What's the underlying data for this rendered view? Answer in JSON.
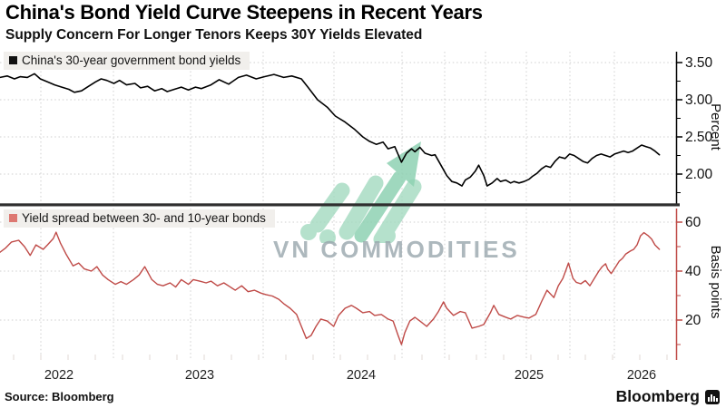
{
  "header": {
    "title": "China's Bond Yield Curve Steepens in Recent Years",
    "subtitle": "Supply Concern For Longer Tenors Keeps 30Y Yields Elevated"
  },
  "watermark": {
    "text": "VN COMMODITIES"
  },
  "footer": {
    "source": "Source: Bloomberg",
    "brand": "Bloomberg"
  },
  "colors": {
    "yield_line": "#000000",
    "spread_line": "#bf4a47",
    "yield_swatch": "#111111",
    "spread_swatch": "#dd7872",
    "grid": "#cfcfcf",
    "separator": "#2f2f2f",
    "axis_top": "#000000",
    "axis_bottom": "#bf4a47",
    "tick_label": "#111111",
    "year_label": "#222222",
    "legend_bg": "#f1efec",
    "watermark_green": "#a3dac0",
    "watermark_arrow": "#8fd2b3"
  },
  "chart_data": {
    "type": "line",
    "title": "China's Bond Yield Curve Steepens in Recent Years",
    "subtitle": "Supply Concern For Longer Tenors Keeps 30Y Yields Elevated",
    "x_axis": {
      "tick_labels": [
        "2022",
        "2023",
        "2024",
        "2025",
        "2026"
      ],
      "range_years": [
        2021.59,
        2026.31
      ],
      "grid": true
    },
    "panels": [
      {
        "legend": "China's 30-year government bond yields",
        "axis_title": "Percent",
        "y_tick_labels": [
          "3.50",
          "3.00",
          "2.50",
          "2.00"
        ],
        "y_tick_values": [
          3.5,
          3.0,
          2.5,
          2.0
        ],
        "y_minor_ticks": [
          3.25,
          2.75,
          2.25,
          1.75
        ],
        "ylim": [
          1.59,
          3.65
        ],
        "series_name": "China 30Y yield (%)",
        "series": [
          [
            2021.59,
            3.3
          ],
          [
            2021.64,
            3.32
          ],
          [
            2021.69,
            3.28
          ],
          [
            2021.73,
            3.31
          ],
          [
            2021.78,
            3.3
          ],
          [
            2021.83,
            3.35
          ],
          [
            2021.87,
            3.28
          ],
          [
            2021.92,
            3.24
          ],
          [
            2021.97,
            3.2
          ],
          [
            2022.02,
            3.17
          ],
          [
            2022.07,
            3.14
          ],
          [
            2022.11,
            3.1
          ],
          [
            2022.16,
            3.12
          ],
          [
            2022.21,
            3.18
          ],
          [
            2022.26,
            3.24
          ],
          [
            2022.3,
            3.28
          ],
          [
            2022.34,
            3.26
          ],
          [
            2022.39,
            3.22
          ],
          [
            2022.43,
            3.26
          ],
          [
            2022.48,
            3.2
          ],
          [
            2022.54,
            3.22
          ],
          [
            2022.58,
            3.16
          ],
          [
            2022.63,
            3.18
          ],
          [
            2022.68,
            3.12
          ],
          [
            2022.73,
            3.15
          ],
          [
            2022.77,
            3.11
          ],
          [
            2022.82,
            3.14
          ],
          [
            2022.87,
            3.17
          ],
          [
            2022.92,
            3.13
          ],
          [
            2022.97,
            3.17
          ],
          [
            2023.01,
            3.15
          ],
          [
            2023.07,
            3.2
          ],
          [
            2023.12,
            3.27
          ],
          [
            2023.18,
            3.21
          ],
          [
            2023.24,
            3.3
          ],
          [
            2023.29,
            3.33
          ],
          [
            2023.35,
            3.28
          ],
          [
            2023.4,
            3.31
          ],
          [
            2023.46,
            3.34
          ],
          [
            2023.52,
            3.3
          ],
          [
            2023.57,
            3.32
          ],
          [
            2023.63,
            3.28
          ],
          [
            2023.67,
            3.17
          ],
          [
            2023.73,
            3.0
          ],
          [
            2023.79,
            2.9
          ],
          [
            2023.84,
            2.78
          ],
          [
            2023.9,
            2.7
          ],
          [
            2023.96,
            2.6
          ],
          [
            2024.01,
            2.5
          ],
          [
            2024.05,
            2.44
          ],
          [
            2024.09,
            2.4
          ],
          [
            2024.13,
            2.43
          ],
          [
            2024.16,
            2.34
          ],
          [
            2024.2,
            2.37
          ],
          [
            2024.24,
            2.16
          ],
          [
            2024.27,
            2.28
          ],
          [
            2024.3,
            2.34
          ],
          [
            2024.32,
            2.3
          ],
          [
            2024.35,
            2.36
          ],
          [
            2024.38,
            2.28
          ],
          [
            2024.42,
            2.25
          ],
          [
            2024.44,
            2.26
          ],
          [
            2024.48,
            2.1
          ],
          [
            2024.51,
            1.98
          ],
          [
            2024.54,
            1.9
          ],
          [
            2024.57,
            1.88
          ],
          [
            2024.6,
            1.84
          ],
          [
            2024.62,
            1.92
          ],
          [
            2024.65,
            1.96
          ],
          [
            2024.68,
            2.04
          ],
          [
            2024.7,
            2.12
          ],
          [
            2024.73,
            1.98
          ],
          [
            2024.75,
            1.84
          ],
          [
            2024.78,
            1.88
          ],
          [
            2024.81,
            1.94
          ],
          [
            2024.83,
            1.9
          ],
          [
            2024.86,
            1.92
          ],
          [
            2024.89,
            1.88
          ],
          [
            2024.91,
            1.9
          ],
          [
            2024.94,
            1.88
          ],
          [
            2024.97,
            1.9
          ],
          [
            2025.0,
            1.93
          ],
          [
            2025.03,
            1.97
          ],
          [
            2025.07,
            2.01
          ],
          [
            2025.11,
            2.07
          ],
          [
            2025.15,
            2.11
          ],
          [
            2025.19,
            2.09
          ],
          [
            2025.23,
            2.17
          ],
          [
            2025.27,
            2.23
          ],
          [
            2025.32,
            2.21
          ],
          [
            2025.36,
            2.27
          ],
          [
            2025.4,
            2.25
          ],
          [
            2025.44,
            2.21
          ],
          [
            2025.48,
            2.17
          ],
          [
            2025.52,
            2.15
          ],
          [
            2025.56,
            2.21
          ],
          [
            2025.6,
            2.25
          ],
          [
            2025.64,
            2.27
          ],
          [
            2025.68,
            2.25
          ],
          [
            2025.72,
            2.23
          ],
          [
            2025.76,
            2.27
          ],
          [
            2025.8,
            2.29
          ],
          [
            2025.84,
            2.31
          ],
          [
            2025.88,
            2.29
          ],
          [
            2025.92,
            2.31
          ],
          [
            2025.96,
            2.35
          ],
          [
            2026.0,
            2.39
          ],
          [
            2026.04,
            2.37
          ],
          [
            2026.08,
            2.35
          ],
          [
            2026.12,
            2.31
          ],
          [
            2026.16,
            2.26
          ]
        ]
      },
      {
        "legend": "Yield spread between 30- and 10-year bonds",
        "axis_title": "Basis points",
        "y_tick_labels": [
          "60",
          "40",
          "20"
        ],
        "y_tick_values": [
          60,
          40,
          20
        ],
        "y_minor_ticks": [
          50,
          30,
          10
        ],
        "ylim": [
          3.7,
          65.6
        ],
        "series_name": "30Y-10Y spread (bp)",
        "series": [
          [
            2021.59,
            47.7
          ],
          [
            2021.63,
            49.5
          ],
          [
            2021.67,
            51.9
          ],
          [
            2021.72,
            52.6
          ],
          [
            2021.76,
            50.0
          ],
          [
            2021.8,
            46.4
          ],
          [
            2021.84,
            50.7
          ],
          [
            2021.89,
            48.9
          ],
          [
            2021.92,
            50.7
          ],
          [
            2021.96,
            53.3
          ],
          [
            2021.98,
            55.9
          ],
          [
            2022.01,
            51.5
          ],
          [
            2022.05,
            47.0
          ],
          [
            2022.1,
            42.1
          ],
          [
            2022.14,
            43.3
          ],
          [
            2022.18,
            40.9
          ],
          [
            2022.23,
            40.0
          ],
          [
            2022.27,
            41.8
          ],
          [
            2022.31,
            38.4
          ],
          [
            2022.35,
            36.5
          ],
          [
            2022.4,
            34.6
          ],
          [
            2022.44,
            35.7
          ],
          [
            2022.48,
            34.6
          ],
          [
            2022.53,
            36.5
          ],
          [
            2022.57,
            38.4
          ],
          [
            2022.61,
            41.8
          ],
          [
            2022.66,
            36.5
          ],
          [
            2022.7,
            34.6
          ],
          [
            2022.74,
            34.0
          ],
          [
            2022.79,
            35.2
          ],
          [
            2022.83,
            33.5
          ],
          [
            2022.87,
            36.5
          ],
          [
            2022.92,
            34.6
          ],
          [
            2022.955,
            36.5
          ],
          [
            2023.0,
            35.9
          ],
          [
            2023.04,
            35.2
          ],
          [
            2023.07,
            35.9
          ],
          [
            2023.11,
            34.0
          ],
          [
            2023.15,
            35.2
          ],
          [
            2023.19,
            33.5
          ],
          [
            2023.22,
            32.2
          ],
          [
            2023.26,
            34.0
          ],
          [
            2023.3,
            31.6
          ],
          [
            2023.34,
            32.2
          ],
          [
            2023.38,
            31.0
          ],
          [
            2023.41,
            30.4
          ],
          [
            2023.45,
            29.8
          ],
          [
            2023.49,
            28.5
          ],
          [
            2023.52,
            26.7
          ],
          [
            2023.56,
            24.8
          ],
          [
            2023.6,
            22.3
          ],
          [
            2023.63,
            17.4
          ],
          [
            2023.66,
            12.5
          ],
          [
            2023.69,
            13.7
          ],
          [
            2023.72,
            17.4
          ],
          [
            2023.75,
            20.4
          ],
          [
            2023.79,
            19.6
          ],
          [
            2023.83,
            17.4
          ],
          [
            2023.86,
            21.9
          ],
          [
            2023.9,
            24.8
          ],
          [
            2023.94,
            26.0
          ],
          [
            2023.97,
            24.8
          ],
          [
            2024.01,
            23.0
          ],
          [
            2024.05,
            23.5
          ],
          [
            2024.08,
            21.9
          ],
          [
            2024.12,
            22.3
          ],
          [
            2024.16,
            20.4
          ],
          [
            2024.19,
            19.6
          ],
          [
            2024.22,
            13.7
          ],
          [
            2024.24,
            10.0
          ],
          [
            2024.26,
            14.9
          ],
          [
            2024.29,
            19.6
          ],
          [
            2024.32,
            21.1
          ],
          [
            2024.35,
            19.6
          ],
          [
            2024.39,
            17.4
          ],
          [
            2024.43,
            20.4
          ],
          [
            2024.46,
            23.5
          ],
          [
            2024.49,
            27.4
          ],
          [
            2024.51,
            24.8
          ],
          [
            2024.55,
            21.9
          ],
          [
            2024.59,
            23.5
          ],
          [
            2024.62,
            23.0
          ],
          [
            2024.66,
            16.7
          ],
          [
            2024.7,
            17.4
          ],
          [
            2024.73,
            18.2
          ],
          [
            2024.77,
            23.0
          ],
          [
            2024.79,
            26.0
          ],
          [
            2024.82,
            22.3
          ],
          [
            2024.86,
            21.2
          ],
          [
            2024.89,
            20.4
          ],
          [
            2024.93,
            21.9
          ],
          [
            2024.97,
            21.2
          ],
          [
            2025.0,
            20.8
          ],
          [
            2025.06,
            22.3
          ],
          [
            2025.11,
            27.4
          ],
          [
            2025.16,
            32.2
          ],
          [
            2025.22,
            29.2
          ],
          [
            2025.26,
            34.0
          ],
          [
            2025.3,
            37.0
          ],
          [
            2025.33,
            40.7
          ],
          [
            2025.35,
            43.3
          ],
          [
            2025.39,
            37.0
          ],
          [
            2025.42,
            35.4
          ],
          [
            2025.46,
            34.8
          ],
          [
            2025.5,
            36.1
          ],
          [
            2025.54,
            34.0
          ],
          [
            2025.58,
            37.0
          ],
          [
            2025.62,
            40.0
          ],
          [
            2025.65,
            41.8
          ],
          [
            2025.68,
            43.0
          ],
          [
            2025.7,
            40.7
          ],
          [
            2025.73,
            39.0
          ],
          [
            2025.77,
            41.8
          ],
          [
            2025.8,
            44.0
          ],
          [
            2025.83,
            45.2
          ],
          [
            2025.86,
            47.0
          ],
          [
            2025.9,
            48.2
          ],
          [
            2025.93,
            48.9
          ],
          [
            2025.96,
            50.7
          ],
          [
            2025.99,
            54.4
          ],
          [
            2026.02,
            55.7
          ],
          [
            2026.06,
            54.4
          ],
          [
            2026.09,
            53.1
          ],
          [
            2026.12,
            50.7
          ],
          [
            2026.16,
            48.9
          ]
        ]
      }
    ],
    "legend_position": "top-left of each panel",
    "grid": "dotted"
  }
}
